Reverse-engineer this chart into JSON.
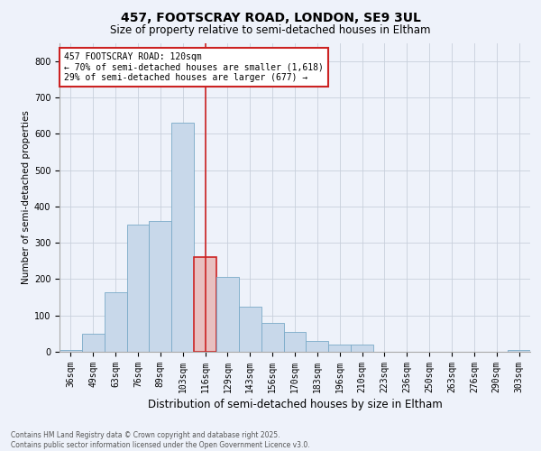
{
  "title_line1": "457, FOOTSCRAY ROAD, LONDON, SE9 3UL",
  "title_line2": "Size of property relative to semi-detached houses in Eltham",
  "xlabel": "Distribution of semi-detached houses by size in Eltham",
  "ylabel": "Number of semi-detached properties",
  "footer_line1": "Contains HM Land Registry data © Crown copyright and database right 2025.",
  "footer_line2": "Contains public sector information licensed under the Open Government Licence v3.0.",
  "annotation_line1": "457 FOOTSCRAY ROAD: 120sqm",
  "annotation_line2": "← 70% of semi-detached houses are smaller (1,618)",
  "annotation_line3": "29% of semi-detached houses are larger (677) →",
  "bar_color": "#c8d8ea",
  "bar_edge_color": "#7aaac8",
  "highlight_bar_color": "#e8c0c0",
  "highlight_edge_color": "#cc2222",
  "red_line_color": "#cc2222",
  "background_color": "#eef2fa",
  "plot_bg_color": "#eef2fa",
  "annotation_bg": "#ffffff",
  "annotation_edge": "#cc2222",
  "grid_color": "#c8d0dc",
  "categories": [
    "36sqm",
    "49sqm",
    "63sqm",
    "76sqm",
    "89sqm",
    "103sqm",
    "116sqm",
    "129sqm",
    "143sqm",
    "156sqm",
    "170sqm",
    "183sqm",
    "196sqm",
    "210sqm",
    "223sqm",
    "236sqm",
    "250sqm",
    "263sqm",
    "276sqm",
    "290sqm",
    "303sqm"
  ],
  "values": [
    5,
    50,
    165,
    350,
    360,
    630,
    260,
    205,
    125,
    80,
    55,
    30,
    20,
    20,
    0,
    0,
    0,
    0,
    0,
    0,
    5
  ],
  "highlight_index": 6,
  "ylim": [
    0,
    850
  ],
  "yticks": [
    0,
    100,
    200,
    300,
    400,
    500,
    600,
    700,
    800
  ],
  "figsize": [
    6.0,
    5.0
  ],
  "dpi": 100,
  "title1_fontsize": 10,
  "title2_fontsize": 8.5,
  "ylabel_fontsize": 7.5,
  "xlabel_fontsize": 8.5,
  "tick_fontsize": 7,
  "footer_fontsize": 5.5,
  "annot_fontsize": 7
}
